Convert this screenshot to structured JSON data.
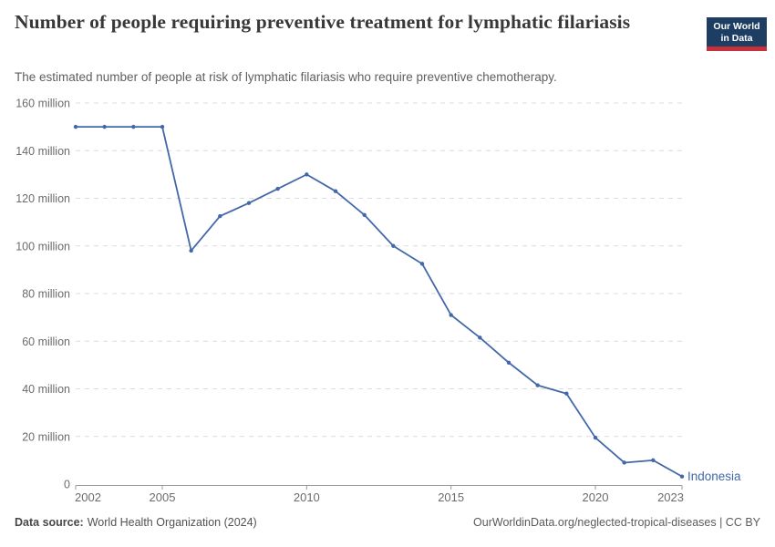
{
  "header": {
    "logo": {
      "line1": "Our World",
      "line2": "in Data",
      "bg_color": "#1d3d63",
      "accent_color": "#c5303c"
    }
  },
  "chart_data": {
    "type": "line",
    "title": "Number of people requiring preventive treatment for lymphatic filariasis",
    "subtitle": "The estimated number of people at risk of lymphatic filariasis who require preventive chemotherapy.",
    "unit": "million people",
    "grid": true,
    "legend_position": "end-of-line-label",
    "xlim": [
      2002,
      2023
    ],
    "ylim": [
      0,
      160
    ],
    "x": [
      2002,
      2003,
      2004,
      2005,
      2006,
      2007,
      2008,
      2009,
      2010,
      2011,
      2012,
      2013,
      2014,
      2015,
      2016,
      2017,
      2018,
      2019,
      2020,
      2021,
      2022,
      2023
    ],
    "series": [
      {
        "name": "Indonesia",
        "color": "#4368a9",
        "values_millions": [
          150,
          150,
          150,
          150,
          98,
          112.5,
          118,
          124,
          130,
          123,
          113,
          100,
          92.5,
          71,
          61.5,
          51,
          41.5,
          38,
          19.5,
          9,
          10,
          3.2
        ]
      }
    ],
    "y_ticks": [
      {
        "value": 0,
        "label": "0"
      },
      {
        "value": 20,
        "label": "20 million"
      },
      {
        "value": 40,
        "label": "40 million"
      },
      {
        "value": 60,
        "label": "60 million"
      },
      {
        "value": 80,
        "label": "80 million"
      },
      {
        "value": 100,
        "label": "100 million"
      },
      {
        "value": 120,
        "label": "120 million"
      },
      {
        "value": 140,
        "label": "140 million"
      },
      {
        "value": 160,
        "label": "160 million"
      }
    ],
    "x_ticks": [
      2002,
      2005,
      2010,
      2015,
      2020,
      2023
    ]
  },
  "footer": {
    "source_label": "Data source:",
    "source_value": "World Health Organization (2024)",
    "link": "OurWorldinData.org/neglected-tropical-diseases | CC BY"
  }
}
